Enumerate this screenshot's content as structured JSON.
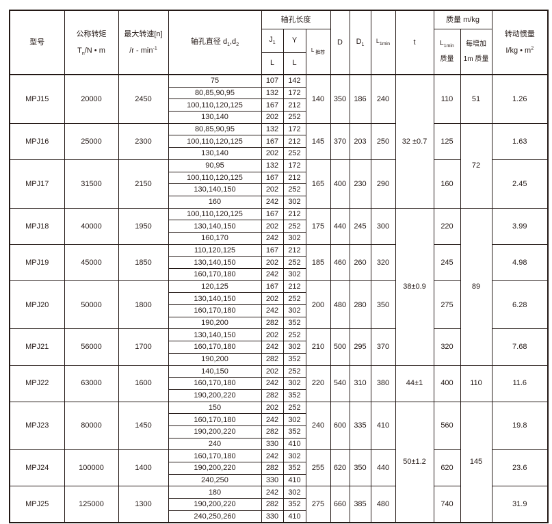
{
  "header": {
    "model": "型号",
    "torque_label": "公称转矩",
    "torque_unit": "Tn/N • m",
    "speed_label": "最大转速[n]",
    "speed_unit": "/r - min-1",
    "bore": "轴孔直径 d1,d2",
    "bore_length": "轴孔长度",
    "j1": "J1",
    "y": "Y",
    "l": "L",
    "l_recommended": "L 推荐",
    "d": "D",
    "d1": "D1",
    "l1min": "L1min",
    "t": "t",
    "mass": "质量 m/kg",
    "mass_l1min_a": "L1min",
    "mass_l1min_b": "质量",
    "mass_add_a": "每增加",
    "mass_add_b": "1m 质量",
    "inertia_label": "转动惯量",
    "inertia_unit": "I/kg • m2"
  },
  "rows": [
    {
      "model": "MPJ15",
      "torque": "20000",
      "speed": "2450",
      "bores": [
        [
          "75",
          "107",
          "142"
        ],
        [
          "80,85,90,95",
          "132",
          "172"
        ],
        [
          "100,110,120,125",
          "167",
          "212"
        ],
        [
          "130,140",
          "202",
          "252"
        ]
      ],
      "L": "140",
      "D": "350",
      "D1": "186",
      "L1min": "240",
      "mass": "110",
      "inertia": "1.26"
    },
    {
      "model": "MPJ16",
      "torque": "25000",
      "speed": "2300",
      "bores": [
        [
          "80,85,90,95",
          "132",
          "172"
        ],
        [
          "100,110,120,125",
          "167",
          "212"
        ],
        [
          "130,140",
          "202",
          "252"
        ]
      ],
      "L": "145",
      "D": "370",
      "D1": "203",
      "L1min": "250",
      "mass": "125",
      "inertia": "1.63"
    },
    {
      "model": "MPJ17",
      "torque": "31500",
      "speed": "2150",
      "bores": [
        [
          "90,95",
          "132",
          "172"
        ],
        [
          "100,110,120,125",
          "167",
          "212"
        ],
        [
          "130,140,150",
          "202",
          "252"
        ],
        [
          "160",
          "242",
          "302"
        ]
      ],
      "L": "165",
      "D": "400",
      "D1": "230",
      "L1min": "290",
      "mass": "160",
      "inertia": "2.45"
    },
    {
      "model": "MPJ18",
      "torque": "40000",
      "speed": "1950",
      "bores": [
        [
          "100,110,120,125",
          "167",
          "212"
        ],
        [
          "130,140,150",
          "202",
          "252"
        ],
        [
          "160,170",
          "242",
          "302"
        ]
      ],
      "L": "175",
      "D": "440",
      "D1": "245",
      "L1min": "300",
      "mass": "220",
      "inertia": "3.99"
    },
    {
      "model": "MPJ19",
      "torque": "45000",
      "speed": "1850",
      "bores": [
        [
          "110,120,125",
          "167",
          "212"
        ],
        [
          "130,140,150",
          "202",
          "252"
        ],
        [
          "160,170,180",
          "242",
          "302"
        ]
      ],
      "L": "185",
      "D": "460",
      "D1": "260",
      "L1min": "320",
      "mass": "245",
      "inertia": "4.98"
    },
    {
      "model": "MPJ20",
      "torque": "50000",
      "speed": "1800",
      "bores": [
        [
          "120,125",
          "167",
          "212"
        ],
        [
          "130,140,150",
          "202",
          "252"
        ],
        [
          "160,170,180",
          "242",
          "302"
        ],
        [
          "190,200",
          "282",
          "352"
        ]
      ],
      "L": "200",
      "D": "480",
      "D1": "280",
      "L1min": "350",
      "mass": "275",
      "inertia": "6.28"
    },
    {
      "model": "MPJ21",
      "torque": "56000",
      "speed": "1700",
      "bores": [
        [
          "130,140,150",
          "202",
          "252"
        ],
        [
          "160,170,180",
          "242",
          "302"
        ],
        [
          "190,200",
          "282",
          "352"
        ]
      ],
      "L": "210",
      "D": "500",
      "D1": "295",
      "L1min": "370",
      "mass": "320",
      "inertia": "7.68"
    },
    {
      "model": "MPJ22",
      "torque": "63000",
      "speed": "1600",
      "bores": [
        [
          "140,150",
          "202",
          "252"
        ],
        [
          "160,170,180",
          "242",
          "302"
        ],
        [
          "190,200,220",
          "282",
          "352"
        ]
      ],
      "L": "220",
      "D": "540",
      "D1": "310",
      "L1min": "380",
      "mass": "400",
      "inertia": "11.6"
    },
    {
      "model": "MPJ23",
      "torque": "80000",
      "speed": "1450",
      "bores": [
        [
          "150",
          "202",
          "252"
        ],
        [
          "160,170,180",
          "242",
          "302"
        ],
        [
          "190,200,220",
          "282",
          "352"
        ],
        [
          "240",
          "330",
          "410"
        ]
      ],
      "L": "240",
      "D": "600",
      "D1": "335",
      "L1min": "410",
      "mass": "560",
      "inertia": "19.8"
    },
    {
      "model": "MPJ24",
      "torque": "100000",
      "speed": "1400",
      "bores": [
        [
          "160,170,180",
          "242",
          "302"
        ],
        [
          "190,200,220",
          "282",
          "352"
        ],
        [
          "240,250",
          "330",
          "410"
        ]
      ],
      "L": "255",
      "D": "620",
      "D1": "350",
      "L1min": "440",
      "mass": "620",
      "inertia": "23.6"
    },
    {
      "model": "MPJ25",
      "torque": "125000",
      "speed": "1300",
      "bores": [
        [
          "180",
          "242",
          "302"
        ],
        [
          "190,200,220",
          "282",
          "352"
        ],
        [
          "240,250,260",
          "330",
          "410"
        ]
      ],
      "L": "275",
      "D": "660",
      "D1": "385",
      "L1min": "480",
      "mass": "740",
      "inertia": "31.9"
    }
  ],
  "t_groups": [
    {
      "value": "32 ±0.7",
      "models": 3
    },
    {
      "value": "38±0.9",
      "models": 4
    },
    {
      "value": "44±1",
      "models": 1
    },
    {
      "value": "50±1.2",
      "models": 3
    }
  ],
  "add_mass_groups": [
    {
      "value": "51",
      "models": 1
    },
    {
      "value": "72",
      "models": 2
    },
    {
      "value": "89",
      "models": 4
    },
    {
      "value": "110",
      "models": 1
    },
    {
      "value": "145",
      "models": 3
    }
  ]
}
